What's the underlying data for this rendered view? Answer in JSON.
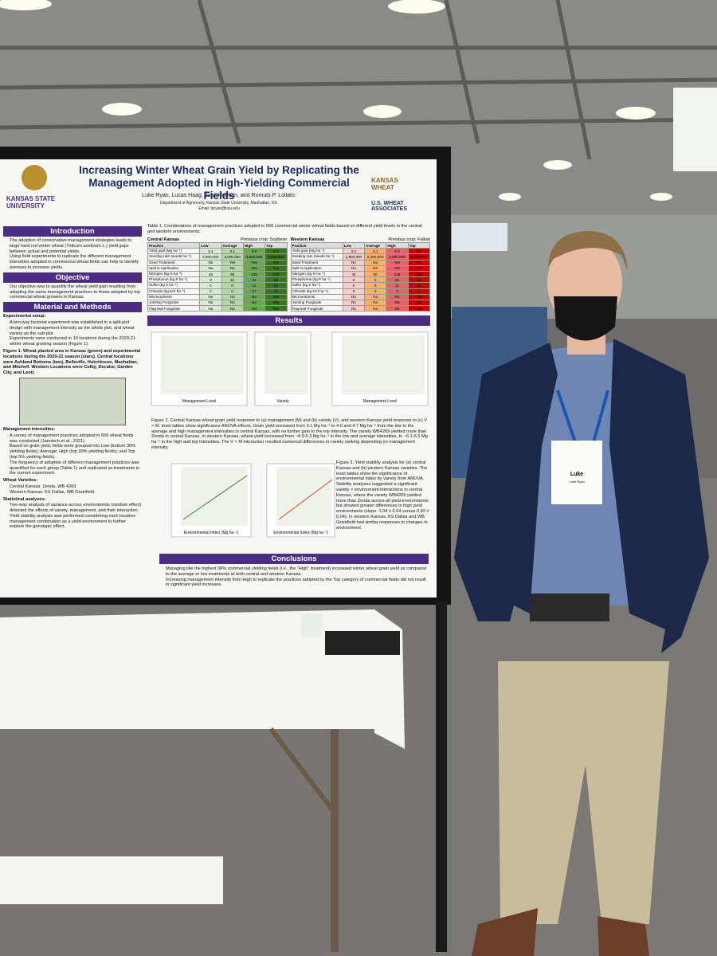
{
  "poster": {
    "title": "Increasing Winter Wheat Grain Yield by Replicating the Management Adopted in High-Yielding Commercial Fields",
    "authors": "Luke Ryan, Lucas Haag, John Holman, and Romulo P. Lollato.",
    "department": "Department of Agronomy, Kansas State University, Manhattan, KS.",
    "email": "Email: lpryan@ksu.edu",
    "logos": [
      "KANSAS STATE UNIVERSITY",
      "KANSAS WHEAT",
      "U.S. WHEAT ASSOCIATES"
    ],
    "left_sections": [
      {
        "heading": "Introduction",
        "blocks": [
          {
            "bullets": [
              "The adoption of conservative management strategies leads to large hard red winter wheat (Triticum aestivum L.) yield gaps between actual and potential yields.",
              "Using field experiments to replicate the different management intensities adopted in commercial wheat fields can help to identify avenues to increase yields."
            ]
          }
        ]
      },
      {
        "heading": "Objective",
        "blocks": [
          {
            "bullets": [
              "Our objective was to quantify the wheat yield gain resulting from adopting the same management practices to those adopted by top commercial wheat growers in Kansas."
            ]
          }
        ]
      },
      {
        "heading": "Material and Methods",
        "blocks": [
          {
            "subheading": "Experimental setup:",
            "bullets": [
              "A two-way factorial experiment was established in a split-plot design with management intensity as the whole plot, and wheat variety as the sub-plot.",
              "Experiments were conducted in 10 locations during the 2020-21 winter wheat growing season (Figure 1)."
            ]
          },
          {
            "subheading": "Figure 1. Wheat planted area in Kansas (green) and experimental locations during the 2020-21 season (stars). Central locations were Ashland Bottoms (two), Belleville, Hutchinson, Manhattan, and Mitchell. Western Locations were Colby, Decatur, Garden City, and Leoti.",
            "bullets": []
          },
          {
            "subheading": "Management intensities:",
            "bullets": [
              "A survey of management practices adopted in 656 wheat fields was conducted (Jaenisch et al., 2021).",
              "Based on grain yield, fields were grouped into Low (bottom 30% yielding fields); Average; High (top 30% yielding fields); and Top (top 5% yielding fields).",
              "The frequency of adoption of different management practices was quantified for each group (Table 1) and replicated as treatments in the current experiment."
            ]
          },
          {
            "subheading": "Wheat Varieties:",
            "bullets": [
              "Central Kansas: Zenda, WB 4269",
              "Western Kansas: KS Dallas, WB Grainfield"
            ]
          },
          {
            "subheading": "Statistical analyses:",
            "bullets": [
              "Two-way analysis of variance across environments (random effect) detected the effects of variety, management, and their interaction.",
              "Yield stability analysis was performed considering each location-management combination as a yield-environment to further explore the genotypic effect."
            ]
          }
        ]
      }
    ],
    "table": {
      "caption": "Table 1. Combinations of management practices adopted in 656 commercial winter wheat fields based on different yield levels in the central and western environments.",
      "regions": [
        {
          "title": "Central Kansas",
          "note": "Previous crop: Soybean",
          "header": [
            "Practice",
            "Low",
            "Average",
            "High",
            "Top"
          ],
          "rows": [
            [
              "Yield goal (Mg ha⁻¹)",
              "2.4",
              "3.1",
              "5.0",
              "6.4"
            ],
            [
              "Seeding rate (seeds ha⁻¹)",
              "2,500,000",
              "3,000,000",
              "3,600,000",
              "3,600,000"
            ],
            [
              "Seed Treatment",
              "No",
              "Yes",
              "Yes",
              "Yes"
            ],
            [
              "Split N Application",
              "No",
              "No",
              "Yes",
              "Yes"
            ],
            [
              "Nitrogen (kg N ha⁻¹)",
              "45",
              "90",
              "135",
              "180"
            ],
            [
              "Phosphorus (kg P ha⁻¹)",
              "0",
              "22",
              "34",
              "39"
            ],
            [
              "Sulfur (kg S ha⁻¹)",
              "0",
              "0",
              "11",
              "22"
            ],
            [
              "Chloride (kg KCl ha⁻¹)",
              "0",
              "0",
              "17",
              "17"
            ],
            [
              "Micronutrients",
              "No",
              "No",
              "No",
              "Yes"
            ],
            [
              "Jointing Fungicide",
              "No",
              "No",
              "No",
              "Yes"
            ],
            [
              "Flag-leaf Fungicide",
              "No",
              "No",
              "Yes",
              "Yes"
            ]
          ]
        },
        {
          "title": "Western Kansas",
          "note": "Previous crop: Fallow",
          "header": [
            "Practice",
            "Low",
            "Average",
            "High",
            "Top"
          ],
          "rows": [
            [
              "Yield goal (Mg ha⁻¹)",
              "2.4",
              "3.1",
              "4.4",
              "6.4"
            ],
            [
              "Seeding rate (seeds ha⁻¹)",
              "1,900,000",
              "2,200,000",
              "2,600,000",
              "2,600,000"
            ],
            [
              "Seed Treatment",
              "No",
              "No",
              "Yes",
              "Yes"
            ],
            [
              "Split N Application",
              "No",
              "No",
              "Yes",
              "Yes"
            ],
            [
              "Nitrogen (kg N ha⁻¹)",
              "45",
              "90",
              "135",
              "200"
            ],
            [
              "Phosphorus (kg P ha⁻¹)",
              "0",
              "0",
              "34",
              "34"
            ],
            [
              "Sulfur (kg S ha⁻¹)",
              "0",
              "0",
              "11",
              "22"
            ],
            [
              "Chloride (kg KCl ha⁻¹)",
              "0",
              "0",
              "0",
              "0"
            ],
            [
              "Micronutrients",
              "No",
              "No",
              "No",
              "Yes"
            ],
            [
              "Jointing Fungicide",
              "No",
              "No",
              "No",
              "Yes"
            ],
            [
              "Flag-leaf Fungicide",
              "No",
              "No",
              "No",
              "Yes"
            ]
          ]
        }
      ]
    },
    "results": {
      "heading": "Results",
      "figure2_caption": "Figure 2. Central Kansas wheat grain yield response to (a) management (M) and (b) variety (V), and western Kansas yield response to (c) V × M. Inset tables show significance ANOVA effects. Grain yield increased from 3.1 Mg ha⁻¹ to 4.0 and 4.7 Mg ha⁻¹ from the low to the average and high management intensities in central Kansas, with no further gain to the top intensity. The variety WB4269 yielded more than Zenda in central Kansas. In western Kansas, wheat yield increased from ~4.9-5.3 Mg ha⁻¹ in the low and average intensities, to ~6.1-6.5 Mg ha⁻¹ in the high and top intensities. The V × M interaction resulted numerical differences in variety ranking depending on management intensity.",
      "figure3_caption": "Figure 3. Yield stability analysis for (a) central Kansas and (b) western Kansas varieties. The inset tables show the significance of environmental index by variety from ANOVA. Stability analyses suggested a significant variety × environment interactions in central Kansas, where the variety WB4269 yielded more than Zenda across all yield environments but showed greater differences in high yield environments (slope: 1.04 ± 0.04 versus 0.93 ± 0.04). In western Kansas, KS Dallas and WB Grainfield had similar responses to changes in environment.",
      "x_labels": [
        "Management Level",
        "Variety",
        "Management Level",
        "Environmental Index (Mg ha⁻¹)",
        "Environmental Index (Mg ha⁻¹)"
      ]
    },
    "conclusions": {
      "heading": "Conclusions",
      "bullets": [
        "Managing like the highest 30% commercial yielding fields (i.e., the \"High\" treatment) increased winter wheat grain yield as compared to the average or low treatments at both central and western Kansas.",
        "Increasing management intensity from High to replicate the practices adopted by the Top category of commercial fields did not result in significant yield increases."
      ]
    }
  },
  "badge": {
    "name": "Luke",
    "full_name": "Luke Ryan"
  }
}
